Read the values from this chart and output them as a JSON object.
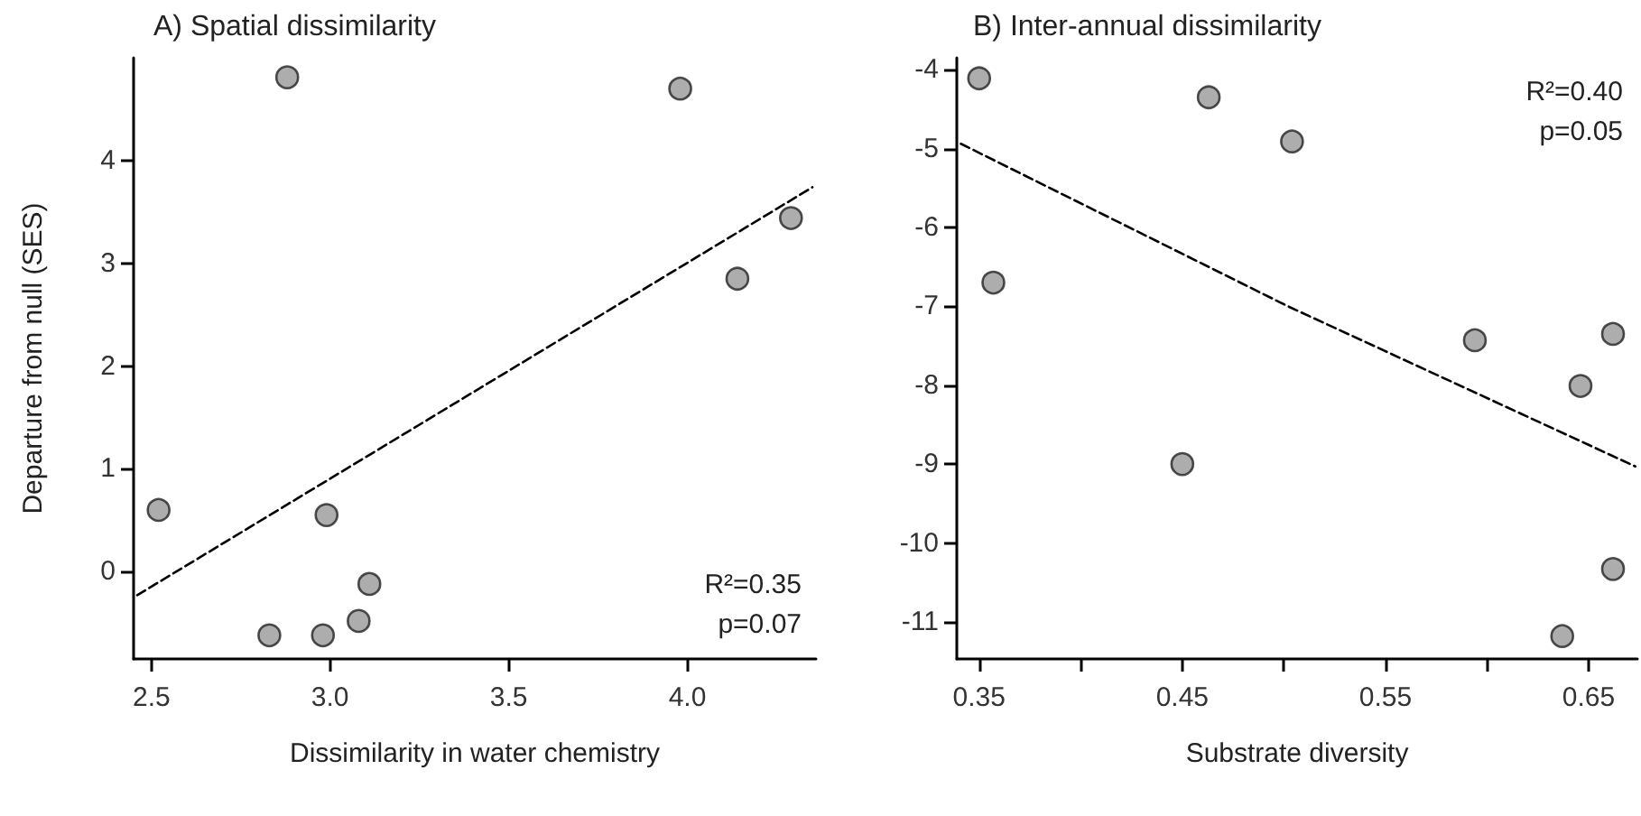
{
  "chart_data": [
    {
      "type": "scatter",
      "title": "A) Spatial dissimilarity",
      "xlabel": "Dissimilarity in water chemistry",
      "ylabel": "Departure from null (SES)",
      "annotations": [
        "R²=0.35",
        "p=0.07"
      ],
      "xlim": [
        2.45,
        4.36
      ],
      "xticks": [
        {
          "value": 2.5,
          "label": "2.5"
        },
        {
          "value": 3,
          "label": "3.0"
        },
        {
          "value": 3.5,
          "label": "3.5"
        },
        {
          "value": 4,
          "label": "4.0"
        }
      ],
      "ylim": [
        -0.85,
        5.0
      ],
      "yticks": [
        0,
        1,
        2,
        3,
        4
      ],
      "grid": false,
      "marker": "circle",
      "series": [
        {
          "color": "#999999",
          "x": [
            2.52,
            2.88,
            2.83,
            2.99,
            2.98,
            3.08,
            3.11,
            3.98,
            4.14,
            4.29
          ],
          "values": [
            0.6,
            4.81,
            -0.62,
            0.55,
            -0.62,
            -0.48,
            -0.12,
            4.7,
            2.85,
            3.44
          ]
        },
        {
          "type": "line",
          "color": "#000000",
          "line_style": "dashed",
          "marker": "none",
          "x": [
            2.46,
            4.35
          ],
          "values": [
            -0.23,
            3.74
          ]
        }
      ]
    },
    {
      "type": "scatter",
      "title": "B) Inter-annual dissimilarity",
      "xlabel": "Substrate diversity",
      "annotations": [
        "R²=0.40",
        "p=0.05"
      ],
      "xlim": [
        0.339,
        0.674
      ],
      "xticks": [
        0.35,
        {
          "value": 0.4,
          "label": null
        },
        0.45,
        {
          "value": 0.5,
          "label": null
        },
        0.55,
        {
          "value": 0.6,
          "label": null
        },
        0.65
      ],
      "ylim": [
        -11.47,
        -3.85
      ],
      "yticks": [
        -11,
        -10,
        -9,
        -8,
        -7,
        -6,
        -5,
        -4
      ],
      "grid": false,
      "marker": "circle",
      "series": [
        {
          "color": "#999999",
          "x": [
            0.35,
            0.357,
            0.463,
            0.504,
            0.45,
            0.594,
            0.646,
            0.662,
            0.662,
            0.637
          ],
          "values": [
            -4.11,
            -6.7,
            -4.35,
            -4.91,
            -9.0,
            -7.43,
            -8.01,
            -7.35,
            -10.33,
            -11.18
          ]
        },
        {
          "type": "line",
          "color": "#000000",
          "line_style": "dashed",
          "marker": "none",
          "x": [
            0.341,
            0.502,
            0.673
          ],
          "values": [
            -4.94,
            -7.0,
            -9.03
          ]
        }
      ]
    }
  ]
}
